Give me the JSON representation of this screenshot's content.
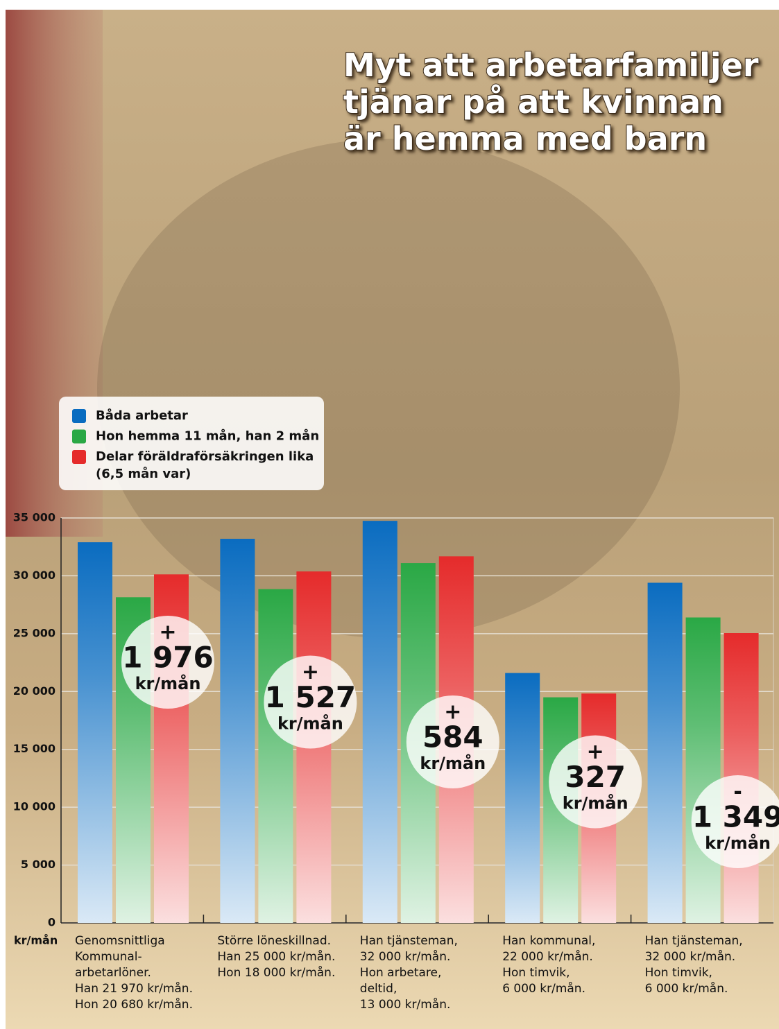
{
  "chart_data": {
    "type": "bar",
    "title": [
      "Myt att arbetarfamiljer",
      "tjänar på att kvinnan",
      "är hemma med barn"
    ],
    "y_unit": "kr/mån",
    "categories": [
      [
        "Genomsnittliga",
        "Kommunal-",
        "arbetarlöner.",
        "Han 21 970 kr/mån.",
        "Hon 20 680 kr/mån."
      ],
      [
        "Större löneskillnad.",
        "Han 25 000 kr/mån.",
        "Hon 18 000 kr/mån."
      ],
      [
        "Han tjänsteman,",
        "32 000 kr/mån.",
        "Hon arbetare,",
        "deltid,",
        "13 000 kr/mån."
      ],
      [
        "Han kommunal,",
        "22 000 kr/mån.",
        "Hon timvik,",
        "6 000 kr/mån."
      ],
      [
        "Han tjänsteman,",
        "32 000 kr/mån.",
        "Hon timvik,",
        "6 000 kr/mån."
      ]
    ],
    "series": [
      {
        "name": "Båda arbetar",
        "color": "#0a6cc0",
        "values": [
          32900,
          33200,
          34750,
          21600,
          29400
        ]
      },
      {
        "name": "Hon hemma 11 mån, han 2 mån",
        "color": "#2aa845",
        "values": [
          28150,
          28850,
          31100,
          19500,
          26400
        ]
      },
      {
        "name": "Delar föräldraförsäkringen lika",
        "color": "#e52b2b",
        "values": [
          30126,
          30377,
          31684,
          19827,
          25051
        ]
      }
    ],
    "legend_note": "(6,5 mån var)",
    "annotations": [
      {
        "sign": "+",
        "amount": "1 976",
        "unit": "kr/mån"
      },
      {
        "sign": "+",
        "amount": "1 527",
        "unit": "kr/mån"
      },
      {
        "sign": "+",
        "amount": "584",
        "unit": "kr/mån"
      },
      {
        "sign": "+",
        "amount": "327",
        "unit": "kr/mån"
      },
      {
        "sign": "-",
        "amount": "1 349",
        "unit": "kr/mån"
      }
    ],
    "ylim": [
      0,
      35000
    ],
    "yticks": [
      0,
      {
        "value": 5000,
        "label": "5 000"
      },
      {
        "value": 10000,
        "label": "10 000"
      },
      {
        "value": 15000,
        "label": "15 000"
      },
      {
        "value": 20000,
        "label": "20 000"
      },
      {
        "value": 25000,
        "label": "25 000"
      },
      {
        "value": 30000,
        "label": "30 000"
      },
      {
        "value": 35000,
        "label": "35 000"
      }
    ],
    "grid": true
  }
}
